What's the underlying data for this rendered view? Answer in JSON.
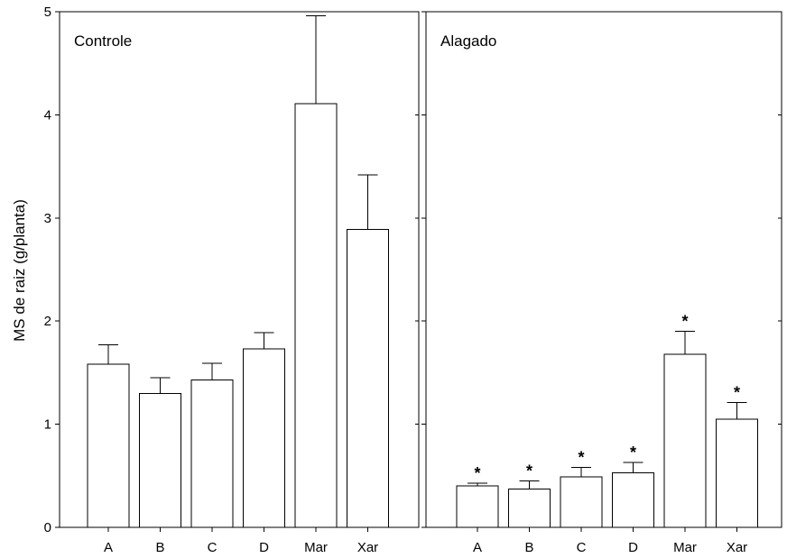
{
  "chart_data": {
    "type": "bar",
    "ylabel": "MS de raiz (g/planta)",
    "ylim": [
      0,
      5
    ],
    "yticks": [
      "0",
      "1",
      "2",
      "3",
      "4",
      "5"
    ],
    "panels": [
      {
        "title": "Controle",
        "categories": [
          "A",
          "B",
          "C",
          "D",
          "Mar",
          "Xar"
        ],
        "values": [
          1.58,
          1.3,
          1.43,
          1.73,
          4.11,
          2.89
        ],
        "errors": [
          0.19,
          0.15,
          0.16,
          0.16,
          0.85,
          0.53
        ],
        "significance": [
          "",
          "",
          "",
          "",
          "",
          ""
        ]
      },
      {
        "title": "Alagado",
        "categories": [
          "A",
          "B",
          "C",
          "D",
          "Mar",
          "Xar"
        ],
        "values": [
          0.4,
          0.37,
          0.49,
          0.53,
          1.68,
          1.05
        ],
        "errors": [
          0.03,
          0.08,
          0.09,
          0.1,
          0.22,
          0.16
        ],
        "significance": [
          "*",
          "*",
          "*",
          "*",
          "*",
          "*"
        ]
      }
    ]
  }
}
